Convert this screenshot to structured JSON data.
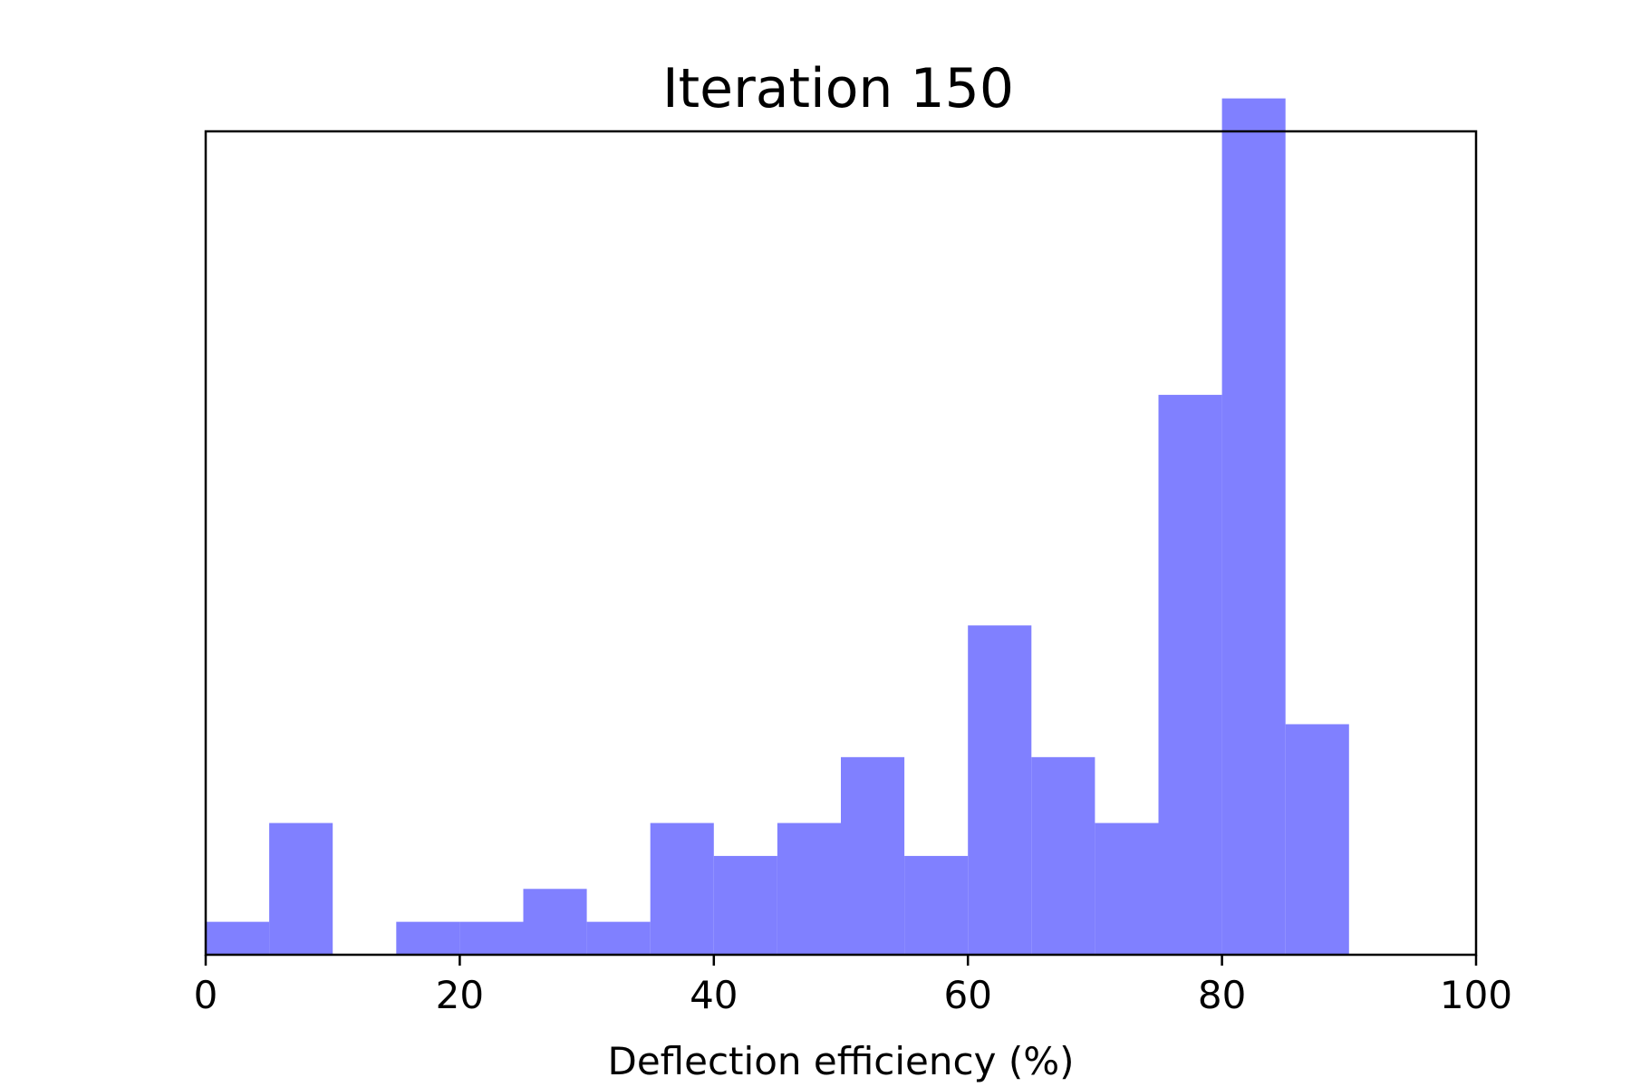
{
  "chart_data": {
    "type": "bar",
    "title": "Iteration 150",
    "xlabel": "Deflection efficiency (%)",
    "ylabel": "",
    "xlim": [
      0,
      100
    ],
    "ylim": [
      0,
      25
    ],
    "x_ticks": [
      "0",
      "20",
      "40",
      "60",
      "80",
      "100"
    ],
    "y_ticks_visible": false,
    "grid": false,
    "bin_width": 5,
    "bins": [
      {
        "x0": 0,
        "x1": 5,
        "value": 1
      },
      {
        "x0": 5,
        "x1": 10,
        "value": 4
      },
      {
        "x0": 10,
        "x1": 15,
        "value": 0
      },
      {
        "x0": 15,
        "x1": 20,
        "value": 1
      },
      {
        "x0": 20,
        "x1": 25,
        "value": 1
      },
      {
        "x0": 25,
        "x1": 30,
        "value": 2
      },
      {
        "x0": 30,
        "x1": 35,
        "value": 1
      },
      {
        "x0": 35,
        "x1": 40,
        "value": 4
      },
      {
        "x0": 40,
        "x1": 45,
        "value": 3
      },
      {
        "x0": 45,
        "x1": 50,
        "value": 4
      },
      {
        "x0": 50,
        "x1": 55,
        "value": 6
      },
      {
        "x0": 55,
        "x1": 60,
        "value": 3
      },
      {
        "x0": 60,
        "x1": 65,
        "value": 10
      },
      {
        "x0": 65,
        "x1": 70,
        "value": 6
      },
      {
        "x0": 70,
        "x1": 75,
        "value": 4
      },
      {
        "x0": 75,
        "x1": 80,
        "value": 17
      },
      {
        "x0": 80,
        "x1": 85,
        "value": 26
      },
      {
        "x0": 85,
        "x1": 90,
        "value": 7
      }
    ],
    "bar_color": "#8080ff"
  }
}
